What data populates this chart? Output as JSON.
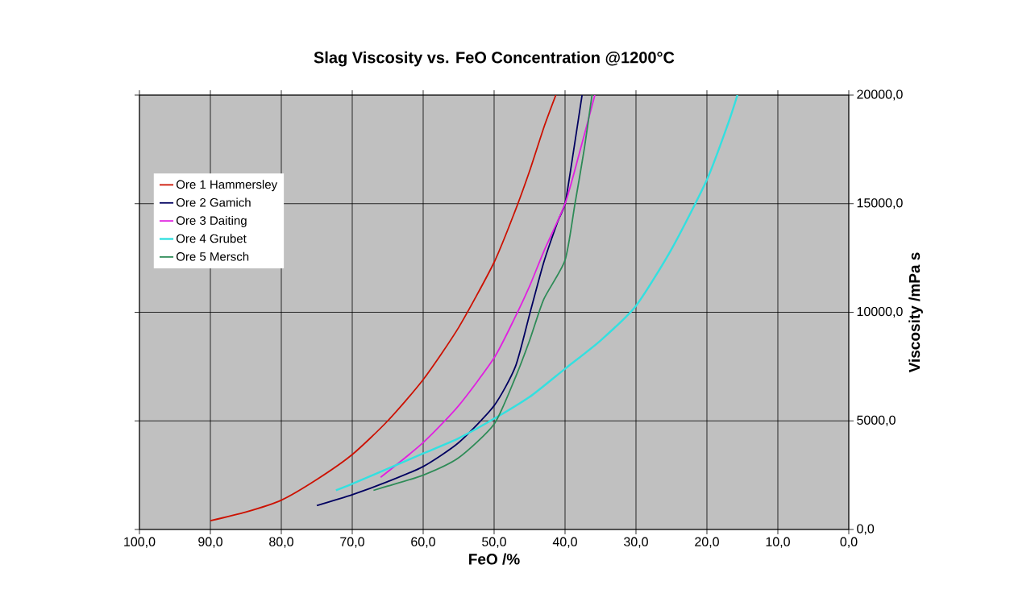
{
  "chart_data": {
    "type": "line",
    "title": "Slag Viscosity vs. FeO Concentration @1200°C",
    "xlabel": "FeO /%",
    "ylabel": "Viscosity /mPa s",
    "xlim": [
      100,
      0
    ],
    "ylim": [
      0,
      20000
    ],
    "xticks": [
      {
        "value": 100,
        "label": "100,0"
      },
      {
        "value": 90,
        "label": "90,0"
      },
      {
        "value": 80,
        "label": "80,0"
      },
      {
        "value": 70,
        "label": "70,0"
      },
      {
        "value": 60,
        "label": "60,0"
      },
      {
        "value": 50,
        "label": "50,0"
      },
      {
        "value": 40,
        "label": "40,0"
      },
      {
        "value": 30,
        "label": "30,0"
      },
      {
        "value": 20,
        "label": "20,0"
      },
      {
        "value": 10,
        "label": "10,0"
      },
      {
        "value": 0,
        "label": "0,0"
      }
    ],
    "yticks": [
      {
        "value": 0,
        "label": "0,0"
      },
      {
        "value": 5000,
        "label": "5000,0"
      },
      {
        "value": 10000,
        "label": "10000,0"
      },
      {
        "value": 15000,
        "label": "15000,0"
      },
      {
        "value": 20000,
        "label": "20000,0"
      }
    ],
    "grid": true,
    "legend": "top left",
    "marker": "none",
    "line_style": "solid",
    "series": [
      {
        "name": "Ore 1 Hammersley",
        "color": "#cc1100",
        "x": [
          90,
          85,
          80,
          75,
          70,
          65,
          60,
          55,
          50,
          47,
          45,
          43,
          41.3
        ],
        "values": [
          400,
          800,
          1350,
          2300,
          3450,
          5000,
          6900,
          9300,
          12300,
          14700,
          16500,
          18500,
          20000
        ]
      },
      {
        "name": "Ore 2 Gamich",
        "color": "#000060",
        "x": [
          75,
          70,
          65,
          60,
          55,
          50,
          47,
          45,
          43,
          41,
          40,
          39,
          37.6
        ],
        "values": [
          1100,
          1600,
          2200,
          2900,
          4000,
          5700,
          7500,
          9900,
          12300,
          14200,
          15000,
          17000,
          20000
        ]
      },
      {
        "name": "Ore 3 Daiting",
        "color": "#e020e0",
        "x": [
          66,
          60,
          55,
          50,
          47,
          45,
          43,
          40,
          38,
          35.8
        ],
        "values": [
          2400,
          4000,
          5700,
          7900,
          9800,
          11200,
          12800,
          15000,
          17300,
          20000
        ]
      },
      {
        "name": "Ore 4 Grubet",
        "color": "#33e0e0",
        "x": [
          72.3,
          70,
          65,
          60,
          55,
          50,
          45,
          40,
          35,
          30,
          25,
          20,
          17,
          15.7
        ],
        "values": [
          1800,
          2100,
          2800,
          3500,
          4200,
          5100,
          6100,
          7400,
          8700,
          10300,
          12900,
          16100,
          18700,
          20000
        ]
      },
      {
        "name": "Ore 5 Mersch",
        "color": "#2e8b57",
        "x": [
          67,
          65,
          60,
          55,
          50,
          47,
          45,
          43,
          40,
          38.6,
          37.3,
          36.2
        ],
        "values": [
          1800,
          2000,
          2500,
          3300,
          4850,
          7000,
          8700,
          10600,
          12400,
          15000,
          17500,
          20000
        ]
      }
    ]
  }
}
